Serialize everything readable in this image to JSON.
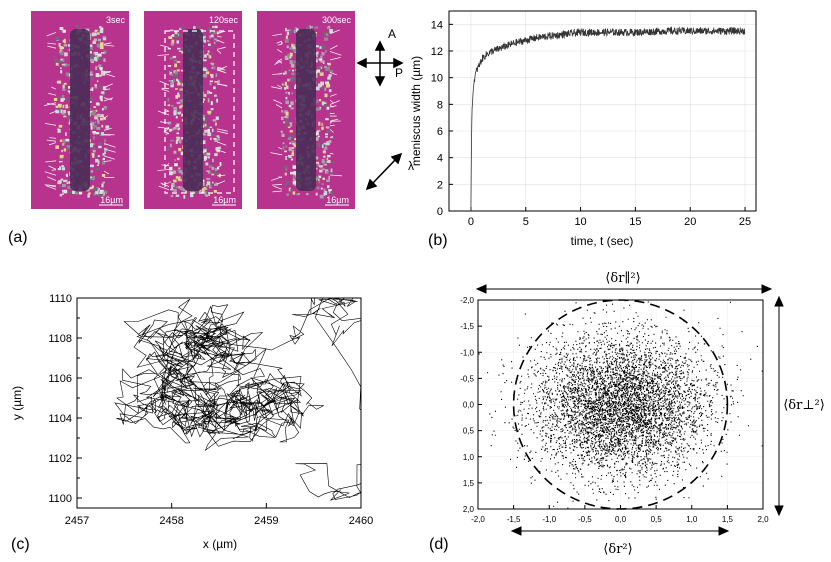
{
  "panels": {
    "a": {
      "label": "(a)",
      "photos": [
        {
          "time": "3sec",
          "scale": "16µm",
          "dashed_box": false
        },
        {
          "time": "120sec",
          "scale": "16µm",
          "dashed_box": true
        },
        {
          "time": "300sec",
          "scale": "16µm",
          "dashed_box": false
        }
      ],
      "polarizer": {
        "A": "A",
        "P": "P"
      },
      "lambda": "λ",
      "colors": {
        "background": "#b8338e",
        "crystal": "#c9c3bf",
        "channel": "#4a2c57"
      }
    },
    "b": {
      "label": "(b)"
    },
    "c": {
      "label": "(c)"
    },
    "d": {
      "label": "(d)"
    }
  },
  "chart_data": [
    {
      "panel": "b",
      "type": "line",
      "xlabel": "time, t (sec)",
      "ylabel": "meniscus width (µm)",
      "xlim": [
        -2,
        26
      ],
      "ylim": [
        0,
        15
      ],
      "xticks": [
        0,
        5,
        10,
        15,
        20,
        25
      ],
      "yticks": [
        0,
        2,
        4,
        6,
        8,
        10,
        12,
        14
      ],
      "grid": true,
      "series": [
        {
          "name": "meniscus width",
          "x": [
            0,
            0.05,
            0.1,
            0.2,
            0.3,
            0.5,
            0.8,
            1,
            1.5,
            2,
            3,
            4,
            5,
            6,
            8,
            10,
            12,
            15,
            18,
            20,
            22,
            25
          ],
          "y": [
            0,
            5,
            7.5,
            9,
            9.8,
            10.5,
            11,
            11.4,
            11.8,
            12,
            12.3,
            12.6,
            12.8,
            13,
            13.2,
            13.4,
            13.4,
            13.4,
            13.5,
            13.5,
            13.5,
            13.5
          ]
        }
      ]
    },
    {
      "panel": "c",
      "type": "line",
      "xlabel": "x (µm)",
      "ylabel": "y (µm)",
      "xlim": [
        2457,
        2460
      ],
      "ylim": [
        1099.5,
        1110
      ],
      "xticks": [
        2457,
        2458,
        2459,
        2460
      ],
      "yticks": [
        1100,
        1102,
        1104,
        1106,
        1108,
        1110
      ],
      "grid": false,
      "trajectory_clusters": [
        {
          "x": 2458.4,
          "y": 1108.1
        },
        {
          "x": 2458.0,
          "y": 1106.2
        },
        {
          "x": 2458.2,
          "y": 1104.2
        },
        {
          "x": 2458.7,
          "y": 1104.8
        },
        {
          "x": 2459.1,
          "y": 1104.5
        },
        {
          "x": 2459.8,
          "y": 1109.3
        },
        {
          "x": 2459.9,
          "y": 1100.3
        }
      ]
    },
    {
      "panel": "d",
      "type": "scatter",
      "xlim": [
        -2.0,
        2.0
      ],
      "ylim": [
        2.0,
        -2.0
      ],
      "xticks": [
        "-2,0",
        "-1,5",
        "-1,0",
        "-0,5",
        "0,0",
        "0,5",
        "1,0",
        "1,5",
        "2,0"
      ],
      "yticks": [
        "-2,0",
        "-1,5",
        "-1,0",
        "-0,5",
        "0,0",
        "0,5",
        "1,0",
        "1,5",
        "2,0"
      ],
      "circle_radius": 1.5,
      "cloud": {
        "center_x": 0.0,
        "center_y": 0.0,
        "sigma_x": 0.6,
        "sigma_y": 0.65
      },
      "annotations": {
        "top": "⟨δr∥²⟩",
        "right": "⟨δr⊥²⟩",
        "bottom": "⟨δr²⟩"
      }
    }
  ]
}
